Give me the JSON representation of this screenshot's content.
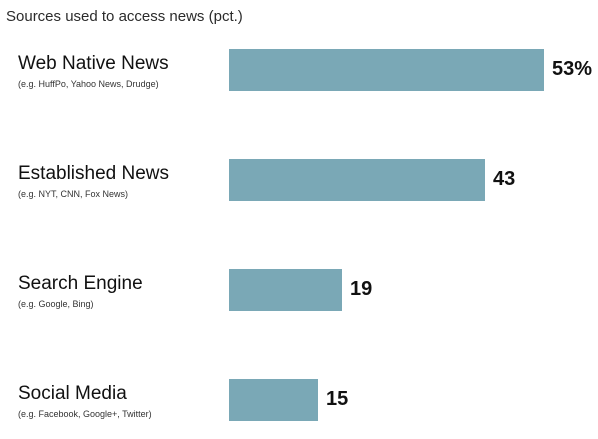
{
  "chart_data": {
    "type": "bar",
    "orientation": "horizontal",
    "title": "Sources used to access news (pct.)",
    "xlabel": "",
    "ylabel": "",
    "xlim": [
      0,
      53
    ],
    "grid": false,
    "legend": "none",
    "bar_color": "#7aa8b6",
    "categories": [
      "Web Native News",
      "Established News",
      "Search Engine",
      "Social Media"
    ],
    "subtitles": [
      "(e.g. HuffPo, Yahoo News, Drudge)",
      "(e.g. NYT, CNN, Fox News)",
      "(e.g. Google, Bing)",
      "(e.g. Facebook, Google+, Twitter)"
    ],
    "values": [
      53,
      43,
      19,
      15
    ],
    "value_labels": [
      "53%",
      "43",
      "19",
      "15"
    ]
  }
}
